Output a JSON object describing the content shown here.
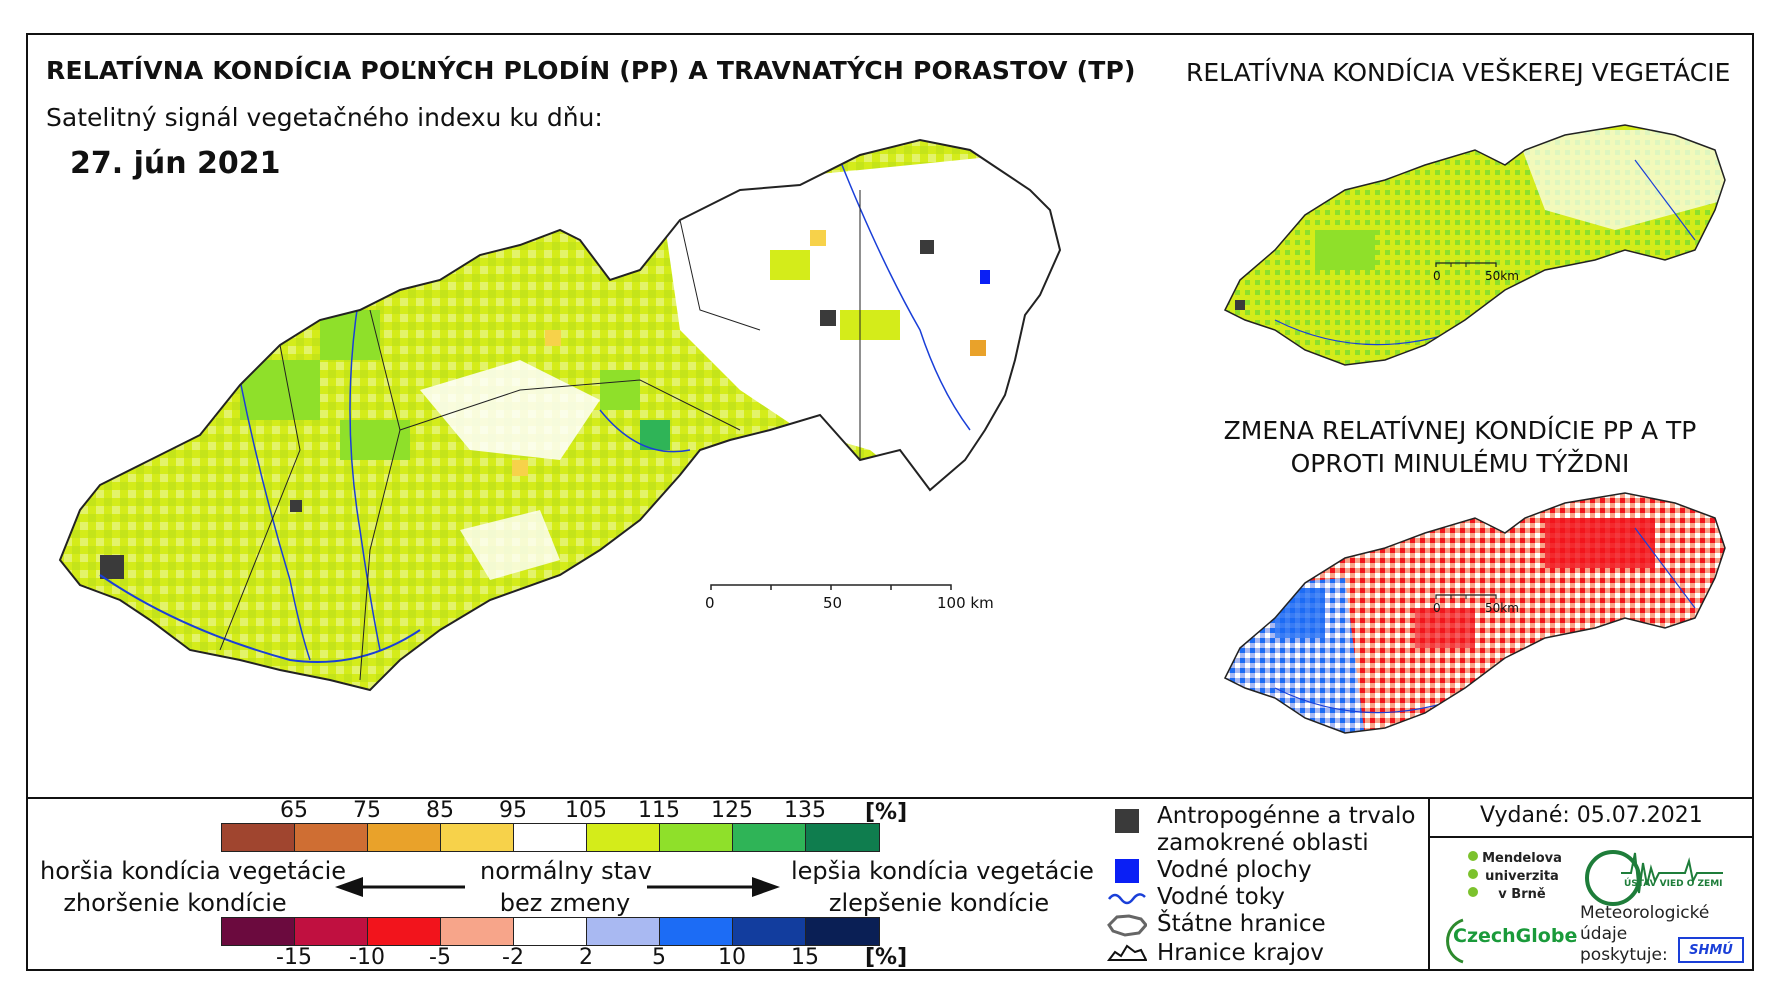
{
  "titles": {
    "main": "RELATÍVNA KONDÍCIA POĽNÝCH PLODÍN (PP) A TRAVNATÝCH PORASTOV (TP)",
    "subtitle": "Satelitný signál vegetačného indexu ku dňu:",
    "date": "27. jún 2021",
    "all_vegetation": "RELATÍVNA KONDÍCIA VEŠKEREJ VEGETÁCIE",
    "change_line1": "ZMENA RELATÍVNEJ KONDÍCIE PP A TP",
    "change_line2": "OPROTI MINULÉMU TÝŽDNI"
  },
  "scalebars": {
    "main": [
      "0",
      "50",
      "100 km"
    ],
    "small_top": [
      "0",
      "50km"
    ],
    "small_bottom": [
      "0",
      "50km"
    ]
  },
  "condition_legend": {
    "ticks": [
      "65",
      "75",
      "85",
      "95",
      "105",
      "115",
      "125",
      "135"
    ],
    "unit": "[%]",
    "colors": [
      "#a0452f",
      "#cf6e33",
      "#e9a22a",
      "#f7d24a",
      "#ffffff",
      "#d4ec1a",
      "#8fe02a",
      "#2fb457",
      "#0f7d4e"
    ]
  },
  "change_legend": {
    "ticks": [
      "-15",
      "-10",
      "-5",
      "-2",
      "2",
      "5",
      "10",
      "15"
    ],
    "unit": "[%]",
    "colors": [
      "#6b0a3e",
      "#c01040",
      "#f2141c",
      "#f7a58a",
      "#ffffff",
      "#a9b9f2",
      "#1c6cf5",
      "#123d9e",
      "#0a1f55"
    ]
  },
  "legend_labels": {
    "worse1": "horšia kondícia vegetácie",
    "worse2": "zhoršenie kondície",
    "normal1": "normálny stav",
    "normal2": "bez zmeny",
    "better1": "lepšia kondícia vegetácie",
    "better2": "zlepšenie kondície"
  },
  "categories": [
    {
      "label": "Antropogénne a trvalo zamokrené oblasti",
      "color": "#3a3a3a"
    },
    {
      "label": "Vodné plochy",
      "color": "#0a1ff5"
    },
    {
      "label": "Vodné toky",
      "color": "#1a3fd8"
    },
    {
      "label": "Štátne hranice",
      "color": "#666666"
    },
    {
      "label": "Hranice krajov",
      "color": "#111111"
    }
  ],
  "issued": "Vydané: 05.07.2021",
  "logos": {
    "mendel": [
      "Mendelova",
      "univerzita",
      "v Brně"
    ],
    "ustav": "ÚSTAV VIED O ZEMI",
    "czechglobe": "CzechGlobe",
    "meteo": [
      "Meteorologické",
      "údaje",
      "poskytuje:"
    ],
    "shmu": "SHMÚ"
  }
}
